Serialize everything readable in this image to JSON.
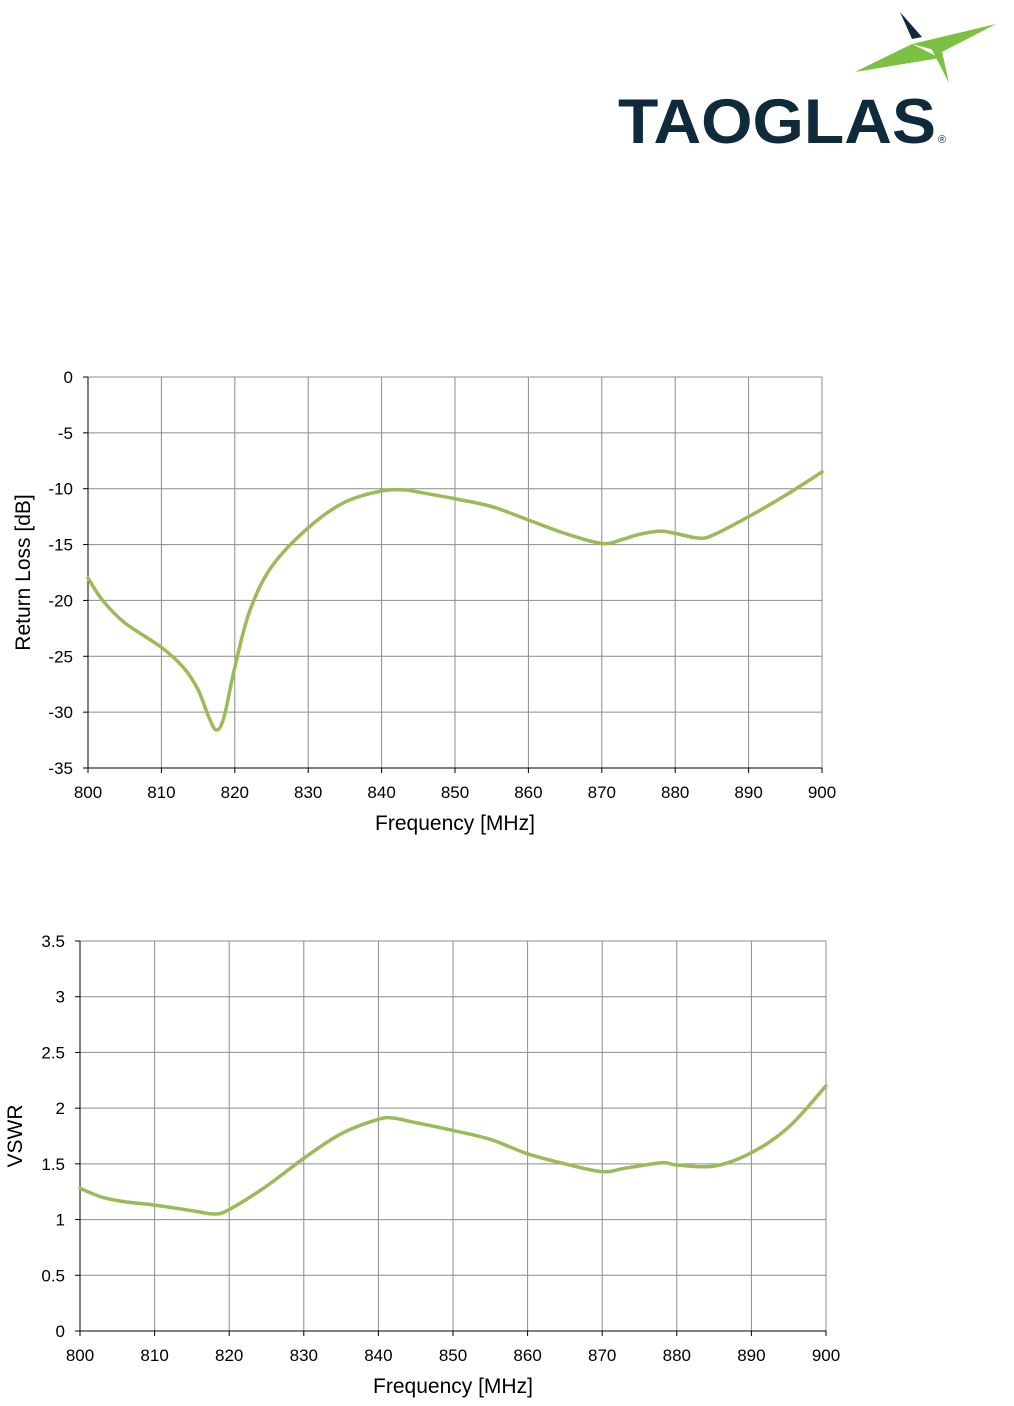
{
  "brand": {
    "name": "TAOGLAS",
    "registered_mark": "®",
    "colors": {
      "navy": "#0f2a3a",
      "green": "#7cc242"
    }
  },
  "line_color": "#9bbb59",
  "chart_data": [
    {
      "type": "line",
      "title": "",
      "xlabel": "Frequency [MHz]",
      "ylabel": "Return Loss [dB]",
      "xlim": [
        800,
        900
      ],
      "ylim": [
        -35,
        0
      ],
      "xticks": [
        800,
        810,
        820,
        830,
        840,
        850,
        860,
        870,
        880,
        890,
        900
      ],
      "yticks": [
        0,
        -5,
        -10,
        -15,
        -20,
        -25,
        -30,
        -35
      ],
      "grid": true,
      "legend": "none",
      "series": [
        {
          "x": [
            800,
            802,
            805,
            810,
            813,
            815,
            816.5,
            817.5,
            818.5,
            820,
            822,
            825,
            830,
            835,
            840,
            843,
            845,
            850,
            855,
            860,
            865,
            870,
            873,
            875,
            878,
            880,
            883,
            885,
            890,
            895,
            900
          ],
          "y": [
            -18,
            -20,
            -22,
            -24.2,
            -26,
            -28,
            -30.5,
            -31.6,
            -30.5,
            -26,
            -21,
            -17,
            -13.5,
            -11.2,
            -10.2,
            -10.1,
            -10.3,
            -10.9,
            -11.6,
            -12.8,
            -14,
            -14.9,
            -14.5,
            -14.1,
            -13.8,
            -14.0,
            -14.4,
            -14.2,
            -12.5,
            -10.6,
            -8.5
          ]
        }
      ]
    },
    {
      "type": "line",
      "title": "",
      "xlabel": "Frequency [MHz]",
      "ylabel": "VSWR",
      "xlim": [
        800,
        900
      ],
      "ylim": [
        0,
        3.5
      ],
      "xticks": [
        800,
        810,
        820,
        830,
        840,
        850,
        860,
        870,
        880,
        890,
        900
      ],
      "yticks": [
        0,
        0.5,
        1,
        1.5,
        2,
        2.5,
        3,
        3.5
      ],
      "grid": true,
      "legend": "none",
      "series": [
        {
          "x": [
            800,
            803,
            806,
            810,
            815,
            818,
            820,
            825,
            830,
            835,
            840,
            842,
            845,
            850,
            855,
            860,
            865,
            870,
            873,
            878,
            880,
            885,
            890,
            895,
            900
          ],
          "y": [
            1.28,
            1.2,
            1.16,
            1.13,
            1.08,
            1.05,
            1.09,
            1.3,
            1.55,
            1.77,
            1.9,
            1.91,
            1.87,
            1.8,
            1.72,
            1.59,
            1.5,
            1.43,
            1.46,
            1.51,
            1.49,
            1.48,
            1.6,
            1.83,
            2.2
          ]
        }
      ]
    }
  ]
}
